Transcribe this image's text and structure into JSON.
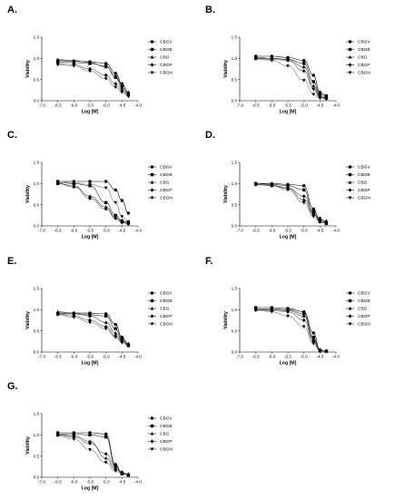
{
  "figure": {
    "legend_items": [
      "CBGV",
      "CBGB",
      "CBG",
      "CBGP",
      "CBGN"
    ]
  },
  "chart_data": [
    {
      "panel": "A.",
      "type": "line",
      "xlabel": "Log [M]",
      "ylabel": "Viability",
      "xlim": [
        -7.0,
        -4.0
      ],
      "ylim": [
        0,
        1.5
      ],
      "x_ticks": [
        "-7.0",
        "-6.5",
        "-6.0",
        "-5.5",
        "-5.0",
        "-4.5",
        "-4.0"
      ],
      "y_ticks": [
        "0.0",
        "0.5",
        "1.0",
        "1.5"
      ],
      "x": [
        -6.5,
        -6.0,
        -5.5,
        -5.0,
        -4.7,
        -4.5,
        -4.3
      ],
      "series": [
        {
          "name": "CBGV",
          "values": [
            0.95,
            0.93,
            0.92,
            0.88,
            0.65,
            0.4,
            0.18
          ]
        },
        {
          "name": "CBGB",
          "values": [
            0.92,
            0.9,
            0.88,
            0.82,
            0.55,
            0.32,
            0.15
          ]
        },
        {
          "name": "CBG",
          "values": [
            0.97,
            0.95,
            0.9,
            0.8,
            0.6,
            0.38,
            0.2
          ]
        },
        {
          "name": "CBGP",
          "values": [
            0.88,
            0.85,
            0.75,
            0.6,
            0.4,
            0.25,
            0.12
          ]
        },
        {
          "name": "CBGN",
          "values": [
            0.85,
            0.82,
            0.7,
            0.52,
            0.32,
            0.2,
            0.1
          ]
        }
      ]
    },
    {
      "panel": "B.",
      "type": "line",
      "xlabel": "Log [M]",
      "ylabel": "Viability",
      "xlim": [
        -7.0,
        -4.0
      ],
      "ylim": [
        0,
        1.5
      ],
      "x_ticks": [
        "-7.0",
        "-6.5",
        "-6.0",
        "-5.5",
        "-5.0",
        "-4.5",
        "-4.0"
      ],
      "y_ticks": [
        "0.0",
        "0.5",
        "1.0",
        "1.5"
      ],
      "x": [
        -6.5,
        -6.0,
        -5.5,
        -5.0,
        -4.7,
        -4.5,
        -4.3
      ],
      "series": [
        {
          "name": "CBGV",
          "values": [
            1.05,
            1.05,
            1.02,
            0.95,
            0.6,
            0.2,
            0.12
          ]
        },
        {
          "name": "CBGB",
          "values": [
            1.02,
            1.0,
            0.98,
            0.88,
            0.45,
            0.15,
            0.08
          ]
        },
        {
          "name": "CBG",
          "values": [
            1.0,
            1.0,
            0.97,
            0.8,
            0.35,
            0.1,
            0.06
          ]
        },
        {
          "name": "CBGP",
          "values": [
            1.0,
            0.98,
            0.95,
            0.7,
            0.28,
            0.08,
            0.05
          ]
        },
        {
          "name": "CBGN",
          "values": [
            0.98,
            0.95,
            0.82,
            0.48,
            0.15,
            0.06,
            0.04
          ]
        }
      ]
    },
    {
      "panel": "C.",
      "type": "line",
      "xlabel": "Log [M]",
      "ylabel": "Viability",
      "xlim": [
        -7.0,
        -4.0
      ],
      "ylim": [
        0,
        1.5
      ],
      "x_ticks": [
        "-7.0",
        "-6.5",
        "-6.0",
        "-5.5",
        "-5.0",
        "-4.5",
        "-4.0"
      ],
      "y_ticks": [
        "0.0",
        "0.5",
        "1.0",
        "1.5"
      ],
      "x": [
        -6.5,
        -6.0,
        -5.5,
        -5.0,
        -4.7,
        -4.5,
        -4.3
      ],
      "series": [
        {
          "name": "CBGV",
          "values": [
            1.05,
            1.05,
            1.05,
            1.05,
            0.85,
            0.6,
            0.3
          ]
        },
        {
          "name": "CBGB",
          "values": [
            1.02,
            1.0,
            0.95,
            0.55,
            0.25,
            0.12,
            0.08
          ]
        },
        {
          "name": "CBG",
          "values": [
            1.0,
            0.95,
            0.7,
            0.45,
            0.2,
            0.1,
            0.06
          ]
        },
        {
          "name": "CBGP",
          "values": [
            1.0,
            0.92,
            0.65,
            0.4,
            0.18,
            0.08,
            0.05
          ]
        },
        {
          "name": "CBGN",
          "values": [
            1.05,
            1.02,
            0.98,
            0.9,
            0.55,
            0.22,
            0.1
          ]
        }
      ]
    },
    {
      "panel": "D.",
      "type": "line",
      "xlabel": "Log [M]",
      "ylabel": "Viability",
      "xlim": [
        -7.0,
        -4.0
      ],
      "ylim": [
        0,
        1.5
      ],
      "x_ticks": [
        "-7.0",
        "-6.5",
        "-6.0",
        "-5.5",
        "-5.0",
        "-4.5",
        "-4.0"
      ],
      "y_ticks": [
        "0.0",
        "0.5",
        "1.0",
        "1.5"
      ],
      "x": [
        -6.5,
        -6.0,
        -5.5,
        -5.0,
        -4.7,
        -4.5,
        -4.3
      ],
      "series": [
        {
          "name": "CBGV",
          "values": [
            1.0,
            1.0,
            0.98,
            0.95,
            0.4,
            0.12,
            0.08
          ]
        },
        {
          "name": "CBGB",
          "values": [
            1.0,
            0.98,
            0.95,
            0.85,
            0.3,
            0.1,
            0.06
          ]
        },
        {
          "name": "CBG",
          "values": [
            0.98,
            0.95,
            0.88,
            0.62,
            0.28,
            0.15,
            0.12
          ]
        },
        {
          "name": "CBGP",
          "values": [
            0.98,
            0.96,
            0.9,
            0.7,
            0.35,
            0.18,
            0.1
          ]
        },
        {
          "name": "CBGN",
          "values": [
            0.97,
            0.95,
            0.85,
            0.55,
            0.22,
            0.1,
            0.05
          ]
        }
      ]
    },
    {
      "panel": "E.",
      "type": "line",
      "xlabel": "Log [M]",
      "ylabel": "Viability",
      "xlim": [
        -7.0,
        -4.0
      ],
      "ylim": [
        0,
        1.5
      ],
      "x_ticks": [
        "-7.0",
        "-6.5",
        "-6.0",
        "-5.5",
        "-5.0",
        "-4.5",
        "-4.0"
      ],
      "y_ticks": [
        "0.0",
        "0.5",
        "1.0",
        "1.5"
      ],
      "x": [
        -6.5,
        -6.0,
        -5.5,
        -5.0,
        -4.7,
        -4.5,
        -4.3
      ],
      "series": [
        {
          "name": "CBGV",
          "values": [
            0.92,
            0.92,
            0.92,
            0.9,
            0.65,
            0.35,
            0.18
          ]
        },
        {
          "name": "CBGB",
          "values": [
            0.9,
            0.9,
            0.88,
            0.85,
            0.55,
            0.3,
            0.15
          ]
        },
        {
          "name": "CBG",
          "values": [
            0.95,
            0.92,
            0.85,
            0.7,
            0.45,
            0.28,
            0.2
          ]
        },
        {
          "name": "CBGP",
          "values": [
            0.9,
            0.85,
            0.75,
            0.6,
            0.38,
            0.25,
            0.18
          ]
        },
        {
          "name": "CBGN",
          "values": [
            0.88,
            0.82,
            0.7,
            0.55,
            0.35,
            0.22,
            0.15
          ]
        }
      ]
    },
    {
      "panel": "F.",
      "type": "line",
      "xlabel": "Log [M]",
      "ylabel": "Viability",
      "xlim": [
        -7.0,
        -4.0
      ],
      "ylim": [
        0,
        1.5
      ],
      "x_ticks": [
        "-7.0",
        "-6.5",
        "-6.0",
        "-5.5",
        "-5.0",
        "-4.5",
        "-4.0"
      ],
      "y_ticks": [
        "0.0",
        "0.5",
        "1.0",
        "1.5"
      ],
      "x": [
        -6.5,
        -6.0,
        -5.5,
        -5.0,
        -4.7,
        -4.5,
        -4.3
      ],
      "series": [
        {
          "name": "CBGV",
          "values": [
            1.05,
            1.05,
            1.03,
            0.95,
            0.45,
            0.05,
            0.02
          ]
        },
        {
          "name": "CBGB",
          "values": [
            1.02,
            1.02,
            1.0,
            0.9,
            0.35,
            0.04,
            0.02
          ]
        },
        {
          "name": "CBG",
          "values": [
            1.0,
            1.0,
            0.98,
            0.85,
            0.3,
            0.03,
            0.02
          ]
        },
        {
          "name": "CBGP",
          "values": [
            1.0,
            0.98,
            0.95,
            0.75,
            0.25,
            0.03,
            0.02
          ]
        },
        {
          "name": "CBGN",
          "values": [
            0.98,
            0.95,
            0.85,
            0.6,
            0.2,
            0.02,
            0.02
          ]
        }
      ]
    },
    {
      "panel": "G.",
      "type": "line",
      "xlabel": "Log [M]",
      "ylabel": "Viability",
      "xlim": [
        -7.0,
        -4.0
      ],
      "ylim": [
        0,
        1.5
      ],
      "x_ticks": [
        "-7.0",
        "-6.5",
        "-6.0",
        "-5.5",
        "-5.0",
        "-4.5",
        "-4.0"
      ],
      "y_ticks": [
        "0.0",
        "0.5",
        "1.0",
        "1.5"
      ],
      "x": [
        -6.5,
        -6.0,
        -5.5,
        -5.0,
        -4.7,
        -4.5,
        -4.3
      ],
      "series": [
        {
          "name": "CBGV",
          "values": [
            1.05,
            1.05,
            1.05,
            1.02,
            0.3,
            0.1,
            0.05
          ]
        },
        {
          "name": "CBGB",
          "values": [
            1.02,
            1.02,
            1.0,
            0.95,
            0.25,
            0.08,
            0.05
          ]
        },
        {
          "name": "CBG",
          "values": [
            1.0,
            0.98,
            0.85,
            0.45,
            0.2,
            0.1,
            0.08
          ]
        },
        {
          "name": "CBGP",
          "values": [
            1.0,
            0.95,
            0.8,
            0.55,
            0.25,
            0.12,
            0.05
          ]
        },
        {
          "name": "CBGN",
          "values": [
            0.98,
            0.9,
            0.65,
            0.35,
            0.15,
            0.08,
            0.05
          ]
        }
      ]
    }
  ]
}
